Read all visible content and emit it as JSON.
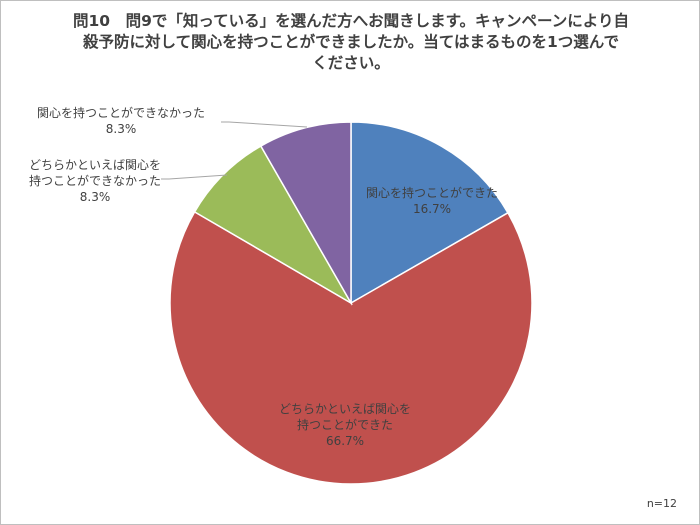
{
  "title_lines": [
    "問10　問9で「知っている」を選んだ方へお聞きします。キャンペーンにより自",
    "殺予防に対して関心を持つことができましたか。当てはまるものを1つ選んで",
    "ください。"
  ],
  "n_label": "n=12",
  "chart_data": {
    "type": "pie",
    "title": "問10　問9で「知っている」を選んだ方へお聞きします。キャンペーンにより自殺予防に対して関心を持つことができましたか。当てはまるものを1つ選んでください。",
    "start_angle": "12 o'clock",
    "direction": "clockwise",
    "slices": [
      {
        "label": "関心を持つことができた",
        "value": 16.7,
        "value_label": "16.7%",
        "color": "#4f81bd"
      },
      {
        "label": "どちらかといえば関心を持つことができた",
        "value": 66.7,
        "value_label": "66.7%",
        "color": "#c0504d"
      },
      {
        "label": "どちらかといえば関心を持つことができなかった",
        "value": 8.3,
        "value_label": "8.3%",
        "color": "#9bbb59"
      },
      {
        "label": "関心を持つことができなかった",
        "value": 8.3,
        "value_label": "8.3%",
        "color": "#8064a2"
      }
    ]
  }
}
